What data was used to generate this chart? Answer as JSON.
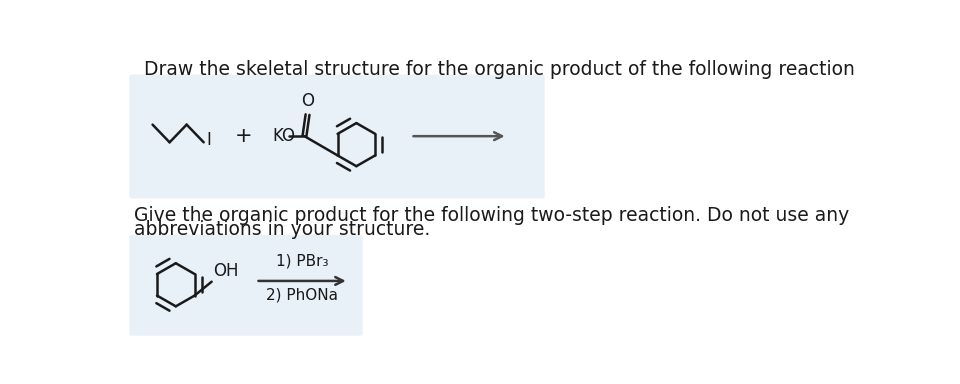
{
  "title1": "Draw the skeletal structure for the organic product of the following reaction",
  "title2_line1": "Give the organic product for the following two-step reaction. Do not use any",
  "title2_line2": "abbreviations in your structure.",
  "box1_color": "#e8f0f8",
  "step1_label": "1) PBr₃",
  "step2_label": "2) PhONa",
  "plus_sign": "+",
  "KO_label": "KO",
  "O_label": "O",
  "OH_label": "OH",
  "I_label": "I",
  "bg_color": "#ffffff",
  "text_color": "#1a1a1a",
  "bond_color": "#1a1a1a",
  "title_fontsize": 13.5,
  "label_fontsize": 12
}
